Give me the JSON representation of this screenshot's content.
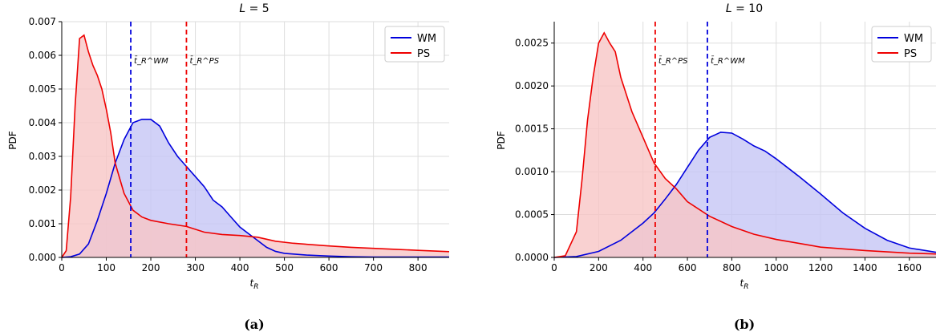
{
  "chart_data": [
    {
      "type": "area",
      "title": "L = 5",
      "panel_label": "(a)",
      "xlabel": "t_R",
      "ylabel": "PDF",
      "xlim": [
        0,
        870
      ],
      "ylim": [
        0,
        0.007
      ],
      "xticks": [
        "0",
        "100",
        "200",
        "300",
        "400",
        "500",
        "600",
        "700",
        "800"
      ],
      "xtick_values": [
        0,
        100,
        200,
        300,
        400,
        500,
        600,
        700,
        800
      ],
      "yticks": [
        "0.000",
        "0.001",
        "0.002",
        "0.003",
        "0.004",
        "0.005",
        "0.006",
        "0.007"
      ],
      "ytick_values": [
        0,
        0.001,
        0.002,
        0.003,
        0.004,
        0.005,
        0.006,
        0.007
      ],
      "grid": true,
      "legend_position": "top-right",
      "series": [
        {
          "name": "WM",
          "color": "#0000dd",
          "fill": "#c6c6f5",
          "x": [
            0,
            20,
            40,
            60,
            80,
            100,
            120,
            140,
            160,
            180,
            200,
            220,
            240,
            260,
            280,
            300,
            320,
            340,
            360,
            380,
            400,
            420,
            440,
            460,
            480,
            500,
            550,
            600,
            650,
            700,
            750,
            800,
            870
          ],
          "y": [
            0,
            2e-05,
            0.0001,
            0.0004,
            0.0011,
            0.0019,
            0.0028,
            0.0035,
            0.004,
            0.0041,
            0.0041,
            0.0039,
            0.0034,
            0.003,
            0.0027,
            0.0024,
            0.0021,
            0.0017,
            0.0015,
            0.0012,
            0.0009,
            0.0007,
            0.0005,
            0.0003,
            0.00018,
            0.00012,
            7e-05,
            4e-05,
            2e-05,
            1e-05,
            1e-05,
            1e-05,
            1e-05
          ]
        },
        {
          "name": "PS",
          "color": "#ee0000",
          "fill": "#f7c5c5",
          "x": [
            0,
            10,
            20,
            30,
            40,
            50,
            60,
            70,
            80,
            90,
            100,
            110,
            120,
            140,
            160,
            180,
            200,
            240,
            280,
            320,
            360,
            400,
            440,
            480,
            520,
            560,
            600,
            650,
            700,
            750,
            800,
            870
          ],
          "y": [
            0,
            0.0002,
            0.0018,
            0.0045,
            0.0065,
            0.0066,
            0.0061,
            0.0057,
            0.0054,
            0.005,
            0.0044,
            0.0037,
            0.0028,
            0.0019,
            0.0014,
            0.0012,
            0.0011,
            0.001,
            0.00092,
            0.00075,
            0.00068,
            0.00065,
            0.0006,
            0.00048,
            0.00042,
            0.00038,
            0.00034,
            0.0003,
            0.00027,
            0.00024,
            0.00021,
            0.00017
          ]
        }
      ],
      "vlines": [
        {
          "label": "t̄_R^WM",
          "x": 155,
          "color": "#0000dd"
        },
        {
          "label": "t̄_R^PS",
          "x": 280,
          "color": "#ee0000"
        }
      ]
    },
    {
      "type": "area",
      "title": "L = 10",
      "panel_label": "(b)",
      "xlabel": "t_R",
      "ylabel": "PDF",
      "xlim": [
        0,
        1720
      ],
      "ylim": [
        0,
        0.00275
      ],
      "xticks": [
        "0",
        "200",
        "400",
        "600",
        "800",
        "1000",
        "1200",
        "1400",
        "1600"
      ],
      "xtick_values": [
        0,
        200,
        400,
        600,
        800,
        1000,
        1200,
        1400,
        1600
      ],
      "yticks": [
        "0.0000",
        "0.0005",
        "0.0010",
        "0.0015",
        "0.0020",
        "0.0025"
      ],
      "ytick_values": [
        0,
        0.0005,
        0.001,
        0.0015,
        0.002,
        0.0025
      ],
      "grid": true,
      "legend_position": "top-right",
      "series": [
        {
          "name": "WM",
          "color": "#0000dd",
          "fill": "#c6c6f5",
          "x": [
            0,
            100,
            200,
            300,
            400,
            450,
            500,
            550,
            600,
            650,
            700,
            750,
            800,
            850,
            900,
            950,
            1000,
            1100,
            1200,
            1300,
            1400,
            1500,
            1600,
            1720
          ],
          "y": [
            0,
            1e-05,
            7e-05,
            0.0002,
            0.0004,
            0.00052,
            0.00068,
            0.00085,
            0.00105,
            0.00125,
            0.0014,
            0.00146,
            0.00145,
            0.00138,
            0.0013,
            0.00124,
            0.00115,
            0.00095,
            0.00074,
            0.00052,
            0.00034,
            0.0002,
            0.00011,
            6e-05
          ]
        },
        {
          "name": "PS",
          "color": "#ee0000",
          "fill": "#f7c5c5",
          "x": [
            0,
            50,
            100,
            125,
            150,
            175,
            200,
            225,
            250,
            275,
            300,
            325,
            350,
            400,
            450,
            500,
            550,
            600,
            700,
            800,
            900,
            1000,
            1200,
            1400,
            1600,
            1720
          ],
          "y": [
            0,
            2e-05,
            0.0003,
            0.0009,
            0.0016,
            0.0021,
            0.0025,
            0.00262,
            0.0025,
            0.0024,
            0.0021,
            0.0019,
            0.0017,
            0.0014,
            0.0011,
            0.00092,
            0.0008,
            0.00065,
            0.00048,
            0.00036,
            0.00027,
            0.00021,
            0.00012,
            8e-05,
            5e-05,
            4e-05
          ]
        }
      ],
      "vlines": [
        {
          "label": "t̄_R^PS",
          "x": 455,
          "color": "#ee0000"
        },
        {
          "label": "t̄_R^WM",
          "x": 690,
          "color": "#0000dd"
        }
      ]
    }
  ]
}
